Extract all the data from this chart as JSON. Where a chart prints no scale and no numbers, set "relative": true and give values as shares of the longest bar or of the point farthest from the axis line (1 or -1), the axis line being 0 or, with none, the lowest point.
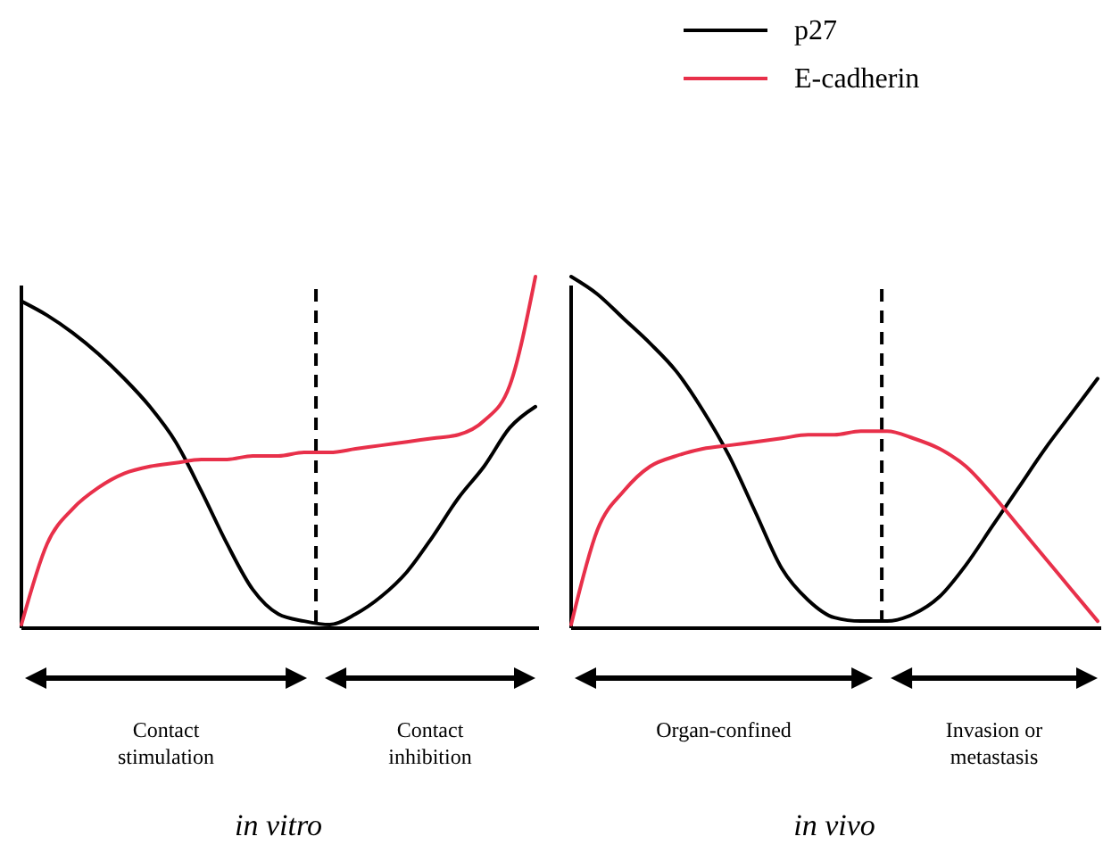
{
  "chart_data": [
    {
      "type": "line",
      "relative": true,
      "xlabel": "in vitro",
      "categories": [
        null,
        null,
        null,
        null,
        null,
        null,
        null,
        null,
        null,
        null,
        null,
        null,
        null,
        null,
        null,
        null,
        null,
        null,
        null,
        null,
        null
      ],
      "series": [
        {
          "color": "#000000",
          "values": [
            0.93,
            0.89,
            0.84,
            0.78,
            0.71,
            0.63,
            0.53,
            0.39,
            0.24,
            0.11,
            0.04,
            0.02,
            0.01,
            0.04,
            0.09,
            0.16,
            0.26,
            0.37,
            0.46,
            0.57,
            0.63
          ]
        },
        {
          "color": "#e8304a",
          "values": [
            0.01,
            0.24,
            0.34,
            0.4,
            0.44,
            0.46,
            0.47,
            0.48,
            0.48,
            0.49,
            0.49,
            0.5,
            0.5,
            0.51,
            0.52,
            0.53,
            0.54,
            0.55,
            0.59,
            0.69,
            1.0
          ]
        }
      ],
      "annotations": [
        "Contact stimulation",
        "Contact inhibition"
      ]
    },
    {
      "type": "line",
      "relative": true,
      "xlabel": "in vivo",
      "legend": "top",
      "categories": [
        null,
        null,
        null,
        null,
        null,
        null,
        null,
        null,
        null,
        null,
        null,
        null,
        null,
        null,
        null,
        null,
        null,
        null,
        null,
        null,
        null
      ],
      "series": [
        {
          "name": "p27",
          "color": "#000000",
          "values": [
            1.0,
            0.95,
            0.88,
            0.81,
            0.73,
            0.62,
            0.49,
            0.33,
            0.17,
            0.08,
            0.03,
            0.02,
            0.02,
            0.04,
            0.09,
            0.18,
            0.29,
            0.4,
            0.51,
            0.61,
            0.71
          ]
        },
        {
          "name": "E-cadherin",
          "color": "#e8304a",
          "values": [
            0.01,
            0.28,
            0.39,
            0.46,
            0.49,
            0.51,
            0.52,
            0.53,
            0.54,
            0.55,
            0.55,
            0.56,
            0.56,
            0.54,
            0.51,
            0.46,
            0.38,
            0.29,
            0.2,
            0.11,
            0.02
          ]
        }
      ],
      "annotations": [
        "Organ-confined",
        "Invasion or metastasis"
      ]
    }
  ]
}
